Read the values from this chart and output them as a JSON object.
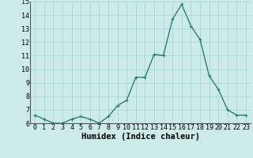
{
  "x": [
    0,
    1,
    2,
    3,
    4,
    5,
    6,
    7,
    8,
    9,
    10,
    11,
    12,
    13,
    14,
    15,
    16,
    17,
    18,
    19,
    20,
    21,
    22,
    23
  ],
  "y": [
    6.6,
    6.3,
    6.0,
    6.0,
    6.3,
    6.5,
    6.3,
    6.0,
    6.5,
    7.3,
    7.7,
    9.4,
    9.4,
    11.1,
    11.0,
    13.7,
    14.8,
    13.2,
    12.2,
    9.5,
    8.5,
    7.0,
    6.6,
    6.6
  ],
  "line_color": "#2e7d6e",
  "marker": "+",
  "marker_color": "#2e7d6e",
  "bg_color": "#cceae8",
  "grid_color": "#a8d8d5",
  "xlabel": "Humidex (Indice chaleur)",
  "ylim": [
    6,
    15
  ],
  "xlim_min": -0.5,
  "xlim_max": 23.5,
  "yticks": [
    6,
    7,
    8,
    9,
    10,
    11,
    12,
    13,
    14,
    15
  ],
  "xticks": [
    0,
    1,
    2,
    3,
    4,
    5,
    6,
    7,
    8,
    9,
    10,
    11,
    12,
    13,
    14,
    15,
    16,
    17,
    18,
    19,
    20,
    21,
    22,
    23
  ],
  "xtick_labels": [
    "0",
    "1",
    "2",
    "3",
    "4",
    "5",
    "6",
    "7",
    "8",
    "9",
    "10",
    "11",
    "12",
    "13",
    "14",
    "15",
    "16",
    "17",
    "18",
    "19",
    "20",
    "21",
    "22",
    "23"
  ],
  "xlabel_fontsize": 7.5,
  "tick_fontsize": 6.0,
  "line_width": 1.0,
  "marker_size": 3.5,
  "marker_edge_width": 0.8
}
